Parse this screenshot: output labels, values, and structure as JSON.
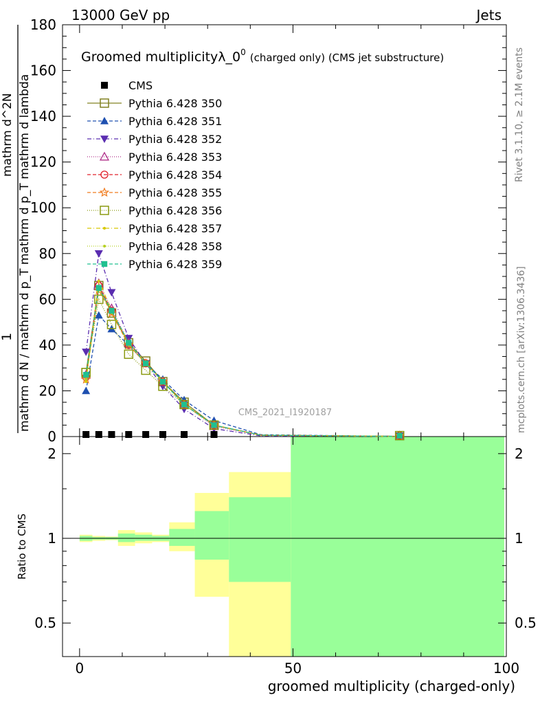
{
  "header": {
    "left": "13000 GeV pp",
    "right": "Jets"
  },
  "side": {
    "top": "Rivet 3.1.10, ≥ 2.1M events",
    "bottom": "mcplots.cern.ch [arXiv:1306.3436]"
  },
  "watermark": "CMS_2021_I1920187",
  "chart_data": {
    "type": "line",
    "title": "Groomed multiplicityλ_0",
    "title_sup": "0",
    "title_suffix": "(charged only) (CMS jet substructure)",
    "ylabel_fraction_num": "1",
    "ylabel_fraction_den": "mathrm d N / mathrm d p_T mathrm d p_T mathrm d lambda",
    "ylabel_top": "mathrm d^2N",
    "xlabel": "groomed multiplicity (charged-only)",
    "ratio_ylabel": "Ratio to CMS",
    "xlim": [
      -4,
      100
    ],
    "ylim": [
      0,
      180
    ],
    "yticks": [
      0,
      20,
      40,
      60,
      80,
      100,
      120,
      140,
      160,
      180
    ],
    "xticks": [
      0,
      50,
      100
    ],
    "ratio_ylim": [
      0.38,
      2.3
    ],
    "ratio_yticks": [
      0.5,
      1,
      2
    ],
    "x": [
      1.5,
      4.5,
      7.5,
      11.5,
      15.5,
      19.5,
      24.5,
      31.5,
      42.5,
      75
    ],
    "cms": [
      0.3,
      0.3,
      0.3,
      0.3,
      0.3,
      0.3,
      0.3,
      0.3,
      0,
      0
    ],
    "series": [
      {
        "name": "Pythia 6.428 350",
        "color": "#808020",
        "marker": "square-open",
        "dash": "",
        "values": [
          28,
          66,
          54,
          41,
          33,
          24,
          15,
          5,
          0.6,
          0.1
        ]
      },
      {
        "name": "Pythia 6.428 351",
        "color": "#1f50b0",
        "marker": "triangle-filled",
        "dash": "5,3",
        "values": [
          20,
          53,
          47,
          40,
          32,
          25,
          16,
          7,
          0.8,
          0.1
        ]
      },
      {
        "name": "Pythia 6.428 352",
        "color": "#5a2db0",
        "marker": "triangle-down-filled",
        "dash": "6,3,1,3",
        "values": [
          37,
          80,
          63,
          43,
          32,
          22,
          12,
          3.5,
          0.3,
          0.05
        ]
      },
      {
        "name": "Pythia 6.428 353",
        "color": "#b0308a",
        "marker": "triangle-open",
        "dash": "1,2",
        "values": [
          27,
          67,
          56,
          41,
          32,
          24,
          14,
          4.5,
          0.5,
          0.1
        ]
      },
      {
        "name": "Pythia 6.428 354",
        "color": "#e0202a",
        "marker": "circle-open",
        "dash": "5,3",
        "values": [
          26,
          66,
          55,
          40,
          32,
          24,
          14,
          5,
          0.6,
          0.1
        ]
      },
      {
        "name": "Pythia 6.428 355",
        "color": "#f07a1c",
        "marker": "star-open",
        "dash": "5,3",
        "values": [
          25,
          64,
          54,
          40,
          32,
          24,
          14,
          5,
          0.6,
          0.1
        ]
      },
      {
        "name": "Pythia 6.428 356",
        "color": "#8a9a10",
        "marker": "square-open",
        "dash": "1,2",
        "values": [
          28,
          60,
          49,
          36,
          29,
          22,
          14,
          5,
          0.6,
          0.1
        ]
      },
      {
        "name": "Pythia 6.428 357",
        "color": "#d8c800",
        "marker": "dot",
        "dash": "6,3,1,3",
        "values": [
          24,
          68,
          55,
          41,
          32,
          24,
          14,
          5,
          0.6,
          0.1
        ]
      },
      {
        "name": "Pythia 6.428 358",
        "color": "#b5d020",
        "marker": "dot",
        "dash": "1,2",
        "values": [
          25,
          64,
          54,
          40,
          32,
          24,
          14,
          5,
          0.6,
          0.1
        ]
      },
      {
        "name": "Pythia 6.428 359",
        "color": "#20c090",
        "marker": "square-filled",
        "dash": "5,3",
        "values": [
          27,
          65,
          55,
          41,
          32,
          24,
          14,
          5,
          0.6,
          0.1
        ]
      }
    ],
    "ratio_bands": [
      {
        "x0": 0,
        "x1": 3,
        "yellow": [
          0.97,
          1.03
        ],
        "green": [
          0.98,
          1.02
        ]
      },
      {
        "x0": 3,
        "x1": 6,
        "yellow": [
          0.98,
          1.02
        ],
        "green": [
          0.99,
          1.01
        ]
      },
      {
        "x0": 6,
        "x1": 9,
        "yellow": [
          0.985,
          1.015
        ],
        "green": [
          0.99,
          1.01
        ]
      },
      {
        "x0": 9,
        "x1": 13,
        "yellow": [
          0.94,
          1.07
        ],
        "green": [
          0.97,
          1.04
        ]
      },
      {
        "x0": 13,
        "x1": 17,
        "yellow": [
          0.96,
          1.05
        ],
        "green": [
          0.98,
          1.03
        ]
      },
      {
        "x0": 17,
        "x1": 21,
        "yellow": [
          0.97,
          1.03
        ],
        "green": [
          0.98,
          1.02
        ]
      },
      {
        "x0": 21,
        "x1": 27,
        "yellow": [
          0.9,
          1.14
        ],
        "green": [
          0.94,
          1.08
        ]
      },
      {
        "x0": 27,
        "x1": 35,
        "yellow": [
          0.62,
          1.45
        ],
        "green": [
          0.84,
          1.25
        ]
      },
      {
        "x0": 35,
        "x1": 49.5,
        "yellow": [
          0.38,
          1.72
        ],
        "green": [
          0.7,
          1.4
        ]
      },
      {
        "x0": 49.5,
        "x1": 99.5,
        "yellow": [
          0.38,
          2.3
        ],
        "green": [
          0.38,
          2.3
        ]
      }
    ]
  }
}
